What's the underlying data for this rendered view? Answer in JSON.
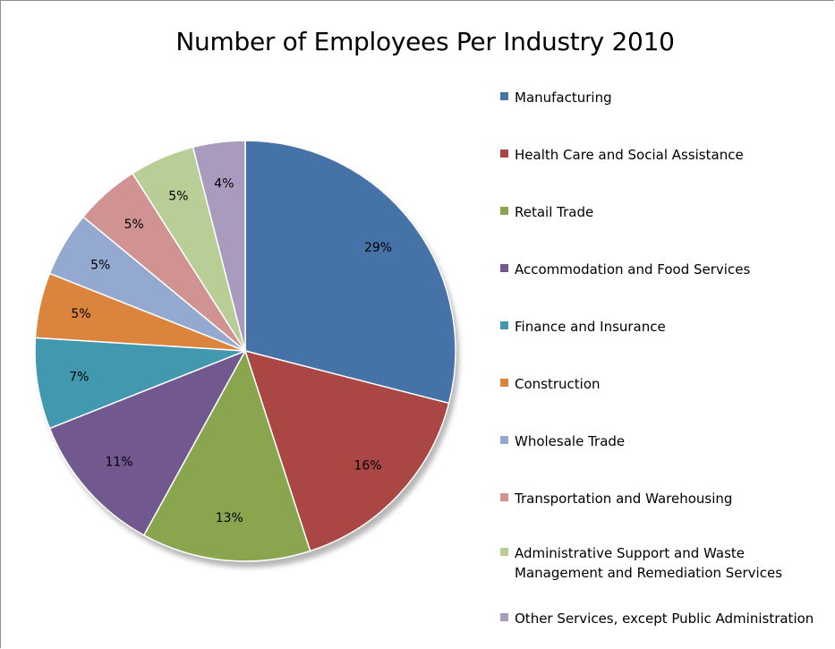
{
  "chart_data": {
    "type": "pie",
    "title": "Number of Employees Per Industry 2010",
    "categories": [
      "Manufacturing",
      "Health Care and Social Assistance",
      "Retail Trade",
      "Accommodation and Food Services",
      "Finance and Insurance",
      "Construction",
      "Wholesale Trade",
      "Transportation and Warehousing",
      "Administrative Support and Waste Management and Remediation Services",
      "Other Services, except Public Administration"
    ],
    "values": [
      29,
      16,
      13,
      11,
      7,
      5,
      5,
      5,
      5,
      4
    ],
    "labels": [
      "29%",
      "16%",
      "13%",
      "11%",
      "7%",
      "5%",
      "5%",
      "5%",
      "5%",
      "4%"
    ],
    "colors": [
      "#4572a7",
      "#aa4643",
      "#89a54e",
      "#71588f",
      "#4198af",
      "#db843d",
      "#93a9cf",
      "#d19392",
      "#b9cd96",
      "#a99bbd"
    ],
    "legend_position": "right",
    "start_angle_deg": 0,
    "direction": "clockwise"
  },
  "legend": {
    "items": [
      "Manufacturing",
      "Health Care and Social Assistance",
      "Retail Trade",
      "Accommodation and Food Services",
      "Finance and Insurance",
      "Construction",
      "Wholesale Trade",
      "Transportation and Warehousing",
      "Administrative Support and Waste\nManagement and Remediation Services",
      "Other Services, except Public Administration"
    ]
  }
}
